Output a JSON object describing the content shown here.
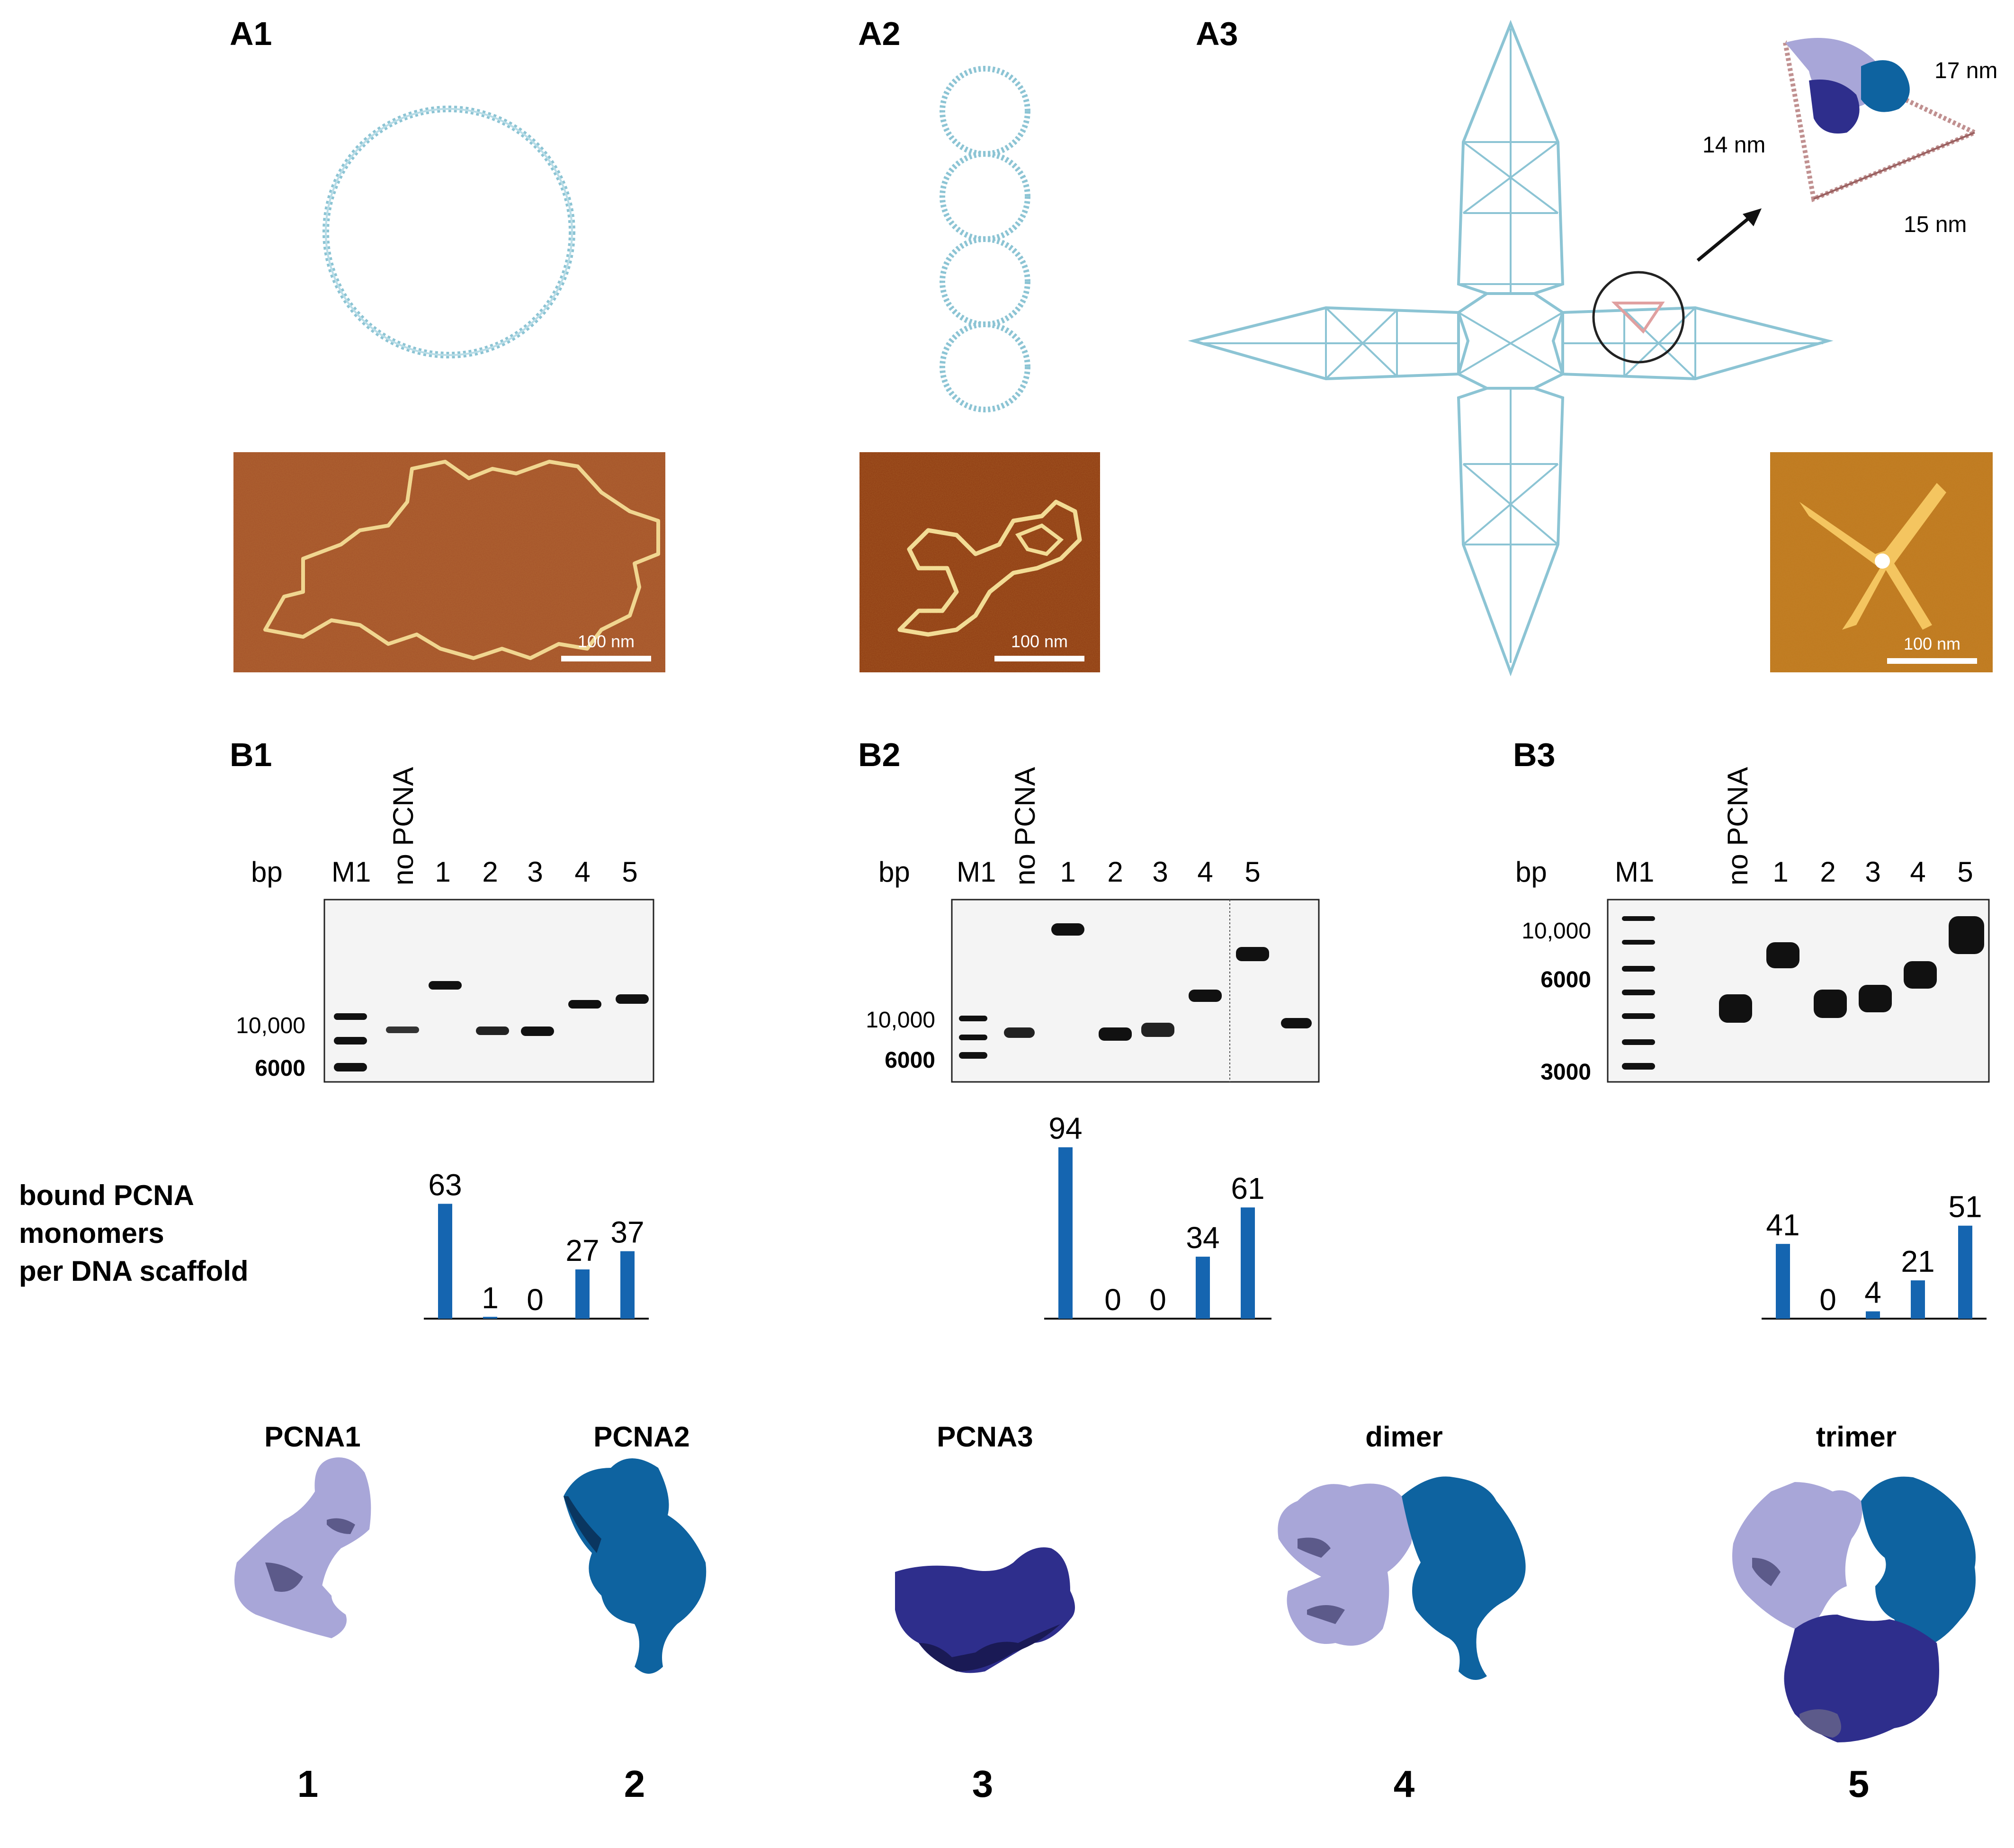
{
  "panels": {
    "a1": "A1",
    "a2": "A2",
    "a3": "A3",
    "b1": "B1",
    "b2": "B2",
    "b3": "B3"
  },
  "afm_scale_bar": "100 nm",
  "inset_dimensions": [
    "17 nm",
    "14 nm",
    "15 nm"
  ],
  "gel_lanes": {
    "bp_label": "bp",
    "marker": "M1",
    "no_pcna": "no PCNA",
    "numbers": [
      "1",
      "2",
      "3",
      "4",
      "5"
    ]
  },
  "marker_labels": {
    "b1": [
      "10,000",
      "6000"
    ],
    "b2": [
      "10,000",
      "6000"
    ],
    "b3": [
      "10,000",
      "6000",
      "3000"
    ]
  },
  "bar_ylabel": [
    "bound PCNA",
    "monomers",
    "per DNA scaffold"
  ],
  "chart_data": [
    {
      "type": "bar",
      "panel": "B1",
      "categories": [
        "1",
        "2",
        "3",
        "4",
        "5"
      ],
      "values": [
        63,
        1,
        0,
        27,
        37
      ],
      "color": "#1565b0"
    },
    {
      "type": "bar",
      "panel": "B2",
      "categories": [
        "1",
        "2",
        "3",
        "4",
        "5"
      ],
      "values": [
        94,
        0,
        0,
        34,
        61
      ],
      "color": "#1565b0"
    },
    {
      "type": "bar",
      "panel": "B3",
      "categories": [
        "1",
        "2",
        "3",
        "4",
        "5"
      ],
      "values": [
        41,
        0,
        4,
        21,
        51
      ],
      "color": "#1565b0"
    }
  ],
  "proteins": [
    {
      "title": "PCNA1",
      "number": "1"
    },
    {
      "title": "PCNA2",
      "number": "2"
    },
    {
      "title": "PCNA3",
      "number": "3"
    },
    {
      "title": "dimer",
      "number": "4"
    },
    {
      "title": "trimer",
      "number": "5"
    }
  ],
  "colors": {
    "pcna1": "#a8a6d8",
    "pcna2": "#0e63a0",
    "pcna3": "#2e2e8c",
    "bar": "#1565b0",
    "dna": "#8cc4d4",
    "afm_bg": "#a0522d"
  }
}
